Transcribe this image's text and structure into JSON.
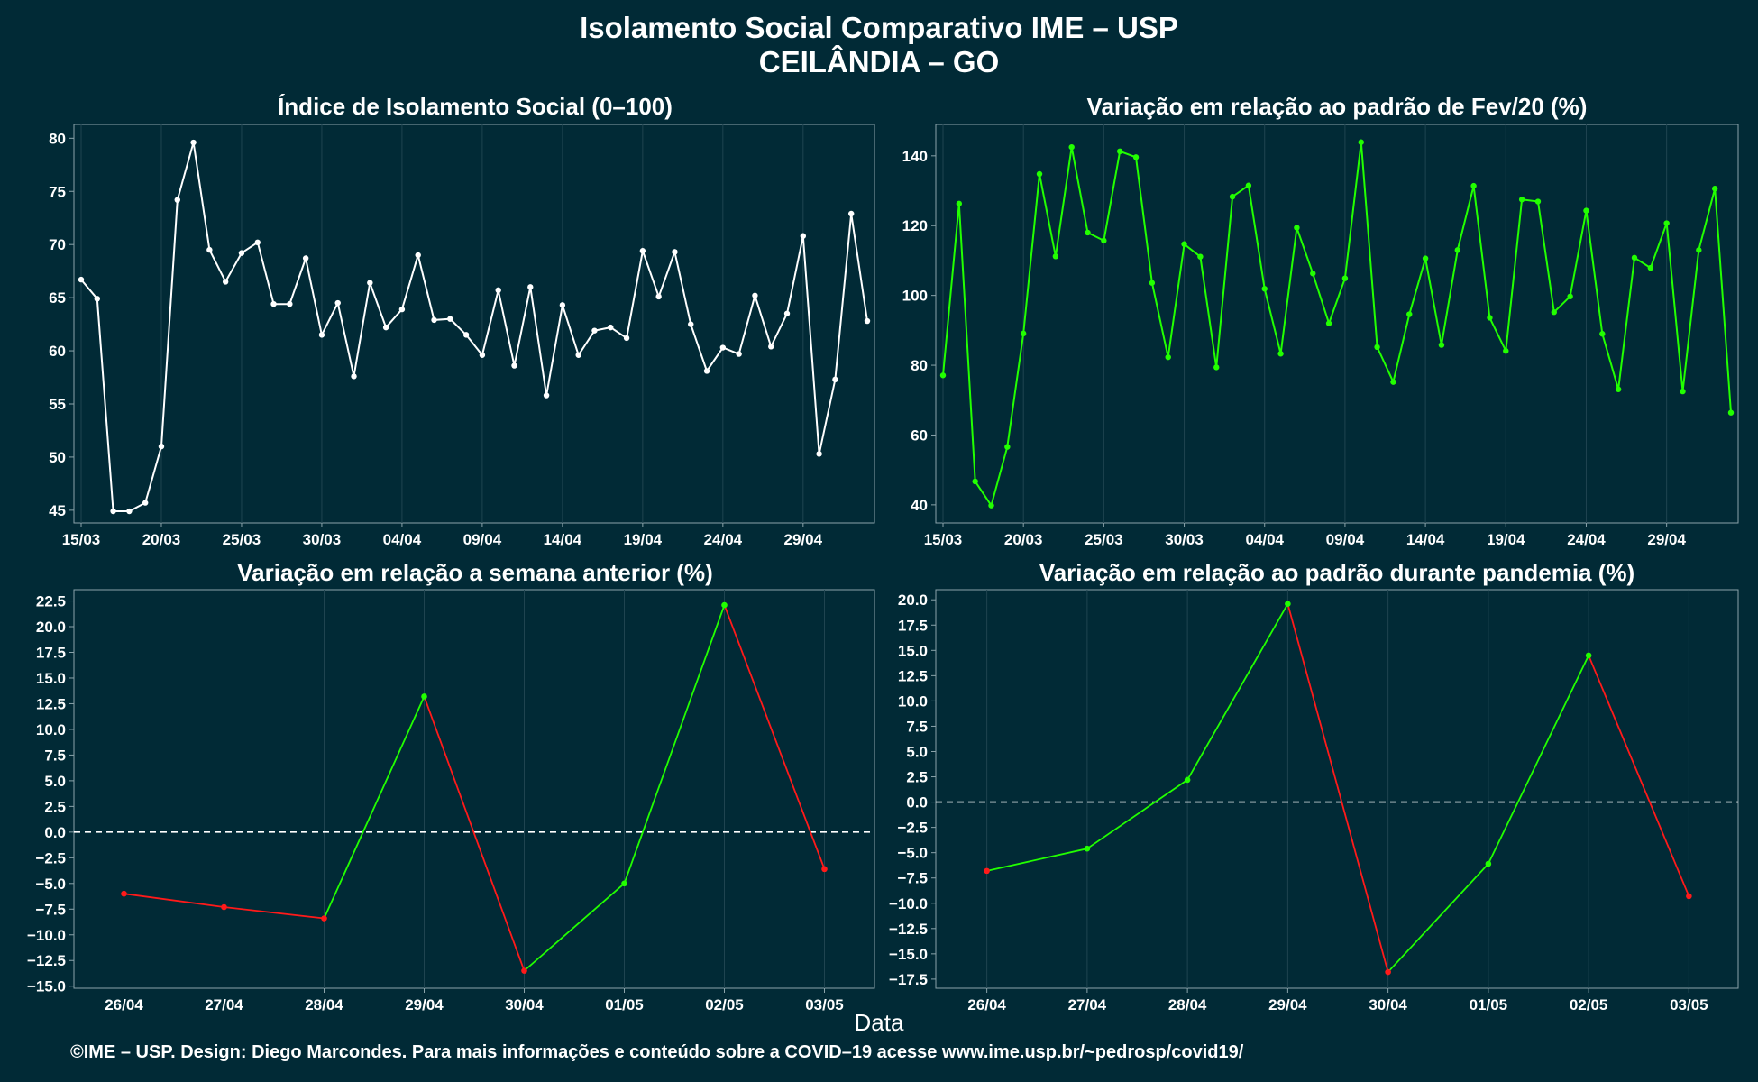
{
  "header": {
    "title_line1": "Isolamento Social Comparativo IME – USP",
    "title_line2": "CEILÂNDIA – GO"
  },
  "footer": {
    "xlabel": "Data",
    "caption": "©IME – USP. Design: Diego Marcondes. Para mais informações e conteúdo sobre a COVID–19 acesse www.ime.usp.br/~pedrosp/covid19/"
  },
  "colors": {
    "background": "#012a36",
    "grid": "#1f4450",
    "axis": "#8aa3aa",
    "white_series": "#ffffff",
    "green_series": "#22ff00",
    "red_series": "#ff1a1a",
    "zero_line": "#ffffff"
  },
  "chart_data": [
    {
      "type": "line",
      "title": "Índice de Isolamento Social (0–100)",
      "xlabel": "",
      "ylabel": "",
      "x": [
        "15/03",
        "16/03",
        "17/03",
        "18/03",
        "19/03",
        "20/03",
        "21/03",
        "22/03",
        "23/03",
        "24/03",
        "25/03",
        "26/03",
        "27/03",
        "28/03",
        "29/03",
        "30/03",
        "31/03",
        "01/04",
        "02/04",
        "03/04",
        "04/04",
        "05/04",
        "06/04",
        "07/04",
        "08/04",
        "09/04",
        "10/04",
        "11/04",
        "12/04",
        "13/04",
        "14/04",
        "15/04",
        "16/04",
        "17/04",
        "18/04",
        "19/04",
        "20/04",
        "21/04",
        "22/04",
        "23/04",
        "24/04",
        "25/04",
        "26/04",
        "27/04",
        "28/04",
        "29/04",
        "30/04",
        "01/05",
        "02/05",
        "03/05"
      ],
      "x_ticks": [
        "15/03",
        "20/03",
        "25/03",
        "30/03",
        "04/04",
        "09/04",
        "14/04",
        "19/04",
        "24/04",
        "29/04"
      ],
      "ylim": [
        43.8,
        81.3
      ],
      "y_ticks": [
        45,
        50,
        55,
        60,
        65,
        70,
        75,
        80
      ],
      "grid": true,
      "series": [
        {
          "values": [
            66.7,
            64.9,
            44.9,
            44.9,
            45.7,
            51.0,
            74.2,
            79.6,
            69.5,
            66.5,
            69.2,
            70.2,
            64.4,
            64.4,
            68.7,
            61.5,
            64.5,
            57.6,
            66.4,
            62.2,
            63.9,
            69.0,
            62.9,
            63.0,
            61.5,
            59.6,
            65.7,
            58.6,
            66.0,
            55.8,
            64.3,
            59.6,
            61.9,
            62.2,
            61.2,
            69.4,
            65.1,
            69.3,
            62.5,
            58.1,
            60.3,
            59.7,
            65.2,
            60.4,
            63.5,
            70.8,
            50.3,
            57.3,
            72.9,
            62.8
          ],
          "color": "#ffffff"
        }
      ]
    },
    {
      "type": "line",
      "title": "Variação em relação ao padrão de Fev/20 (%)",
      "xlabel": "",
      "ylabel": "",
      "x": [
        "15/03",
        "16/03",
        "17/03",
        "18/03",
        "19/03",
        "20/03",
        "21/03",
        "22/03",
        "23/03",
        "24/03",
        "25/03",
        "26/03",
        "27/03",
        "28/03",
        "29/03",
        "30/03",
        "31/03",
        "01/04",
        "02/04",
        "03/04",
        "04/04",
        "05/04",
        "06/04",
        "07/04",
        "08/04",
        "09/04",
        "10/04",
        "11/04",
        "12/04",
        "13/04",
        "14/04",
        "15/04",
        "16/04",
        "17/04",
        "18/04",
        "19/04",
        "20/04",
        "21/04",
        "22/04",
        "23/04",
        "24/04",
        "25/04",
        "26/04",
        "27/04",
        "28/04",
        "29/04",
        "30/04",
        "01/05",
        "02/05",
        "03/05"
      ],
      "x_ticks": [
        "15/03",
        "20/03",
        "25/03",
        "30/03",
        "04/04",
        "09/04",
        "14/04",
        "19/04",
        "24/04",
        "29/04"
      ],
      "ylim": [
        34.8,
        149.0
      ],
      "y_ticks": [
        40,
        60,
        80,
        100,
        120,
        140
      ],
      "grid": true,
      "series": [
        {
          "values": [
            77.1,
            126.3,
            46.7,
            39.8,
            56.6,
            89.1,
            134.8,
            111.2,
            142.5,
            118.0,
            115.7,
            141.3,
            139.6,
            103.6,
            82.3,
            114.7,
            111.1,
            79.4,
            128.3,
            131.5,
            101.9,
            83.3,
            119.4,
            106.3,
            92.0,
            104.9,
            143.9,
            85.2,
            75.2,
            94.6,
            110.6,
            85.8,
            113.0,
            131.4,
            93.6,
            84.1,
            127.5,
            126.9,
            95.2,
            99.7,
            124.3,
            89.0,
            73.1,
            110.8,
            107.9,
            120.7,
            72.5,
            113.0,
            130.6,
            66.4
          ],
          "color": "#22ff00"
        }
      ]
    },
    {
      "type": "line",
      "title": "Variação em relação a semana anterior (%)",
      "xlabel": "",
      "ylabel": "",
      "x": [
        "26/04",
        "27/04",
        "28/04",
        "29/04",
        "30/04",
        "01/05",
        "02/05",
        "03/05"
      ],
      "ylim": [
        -15.2,
        23.6
      ],
      "y_ticks": [
        -15.0,
        -12.5,
        -10.0,
        -7.5,
        -5.0,
        -2.5,
        0.0,
        2.5,
        5.0,
        7.5,
        10.0,
        12.5,
        15.0,
        17.5,
        20.0,
        22.5
      ],
      "y_ticks_label": [
        "−15.0",
        "−12.5",
        "−10.0",
        "−7.5",
        "−5.0",
        "−2.5",
        "0.0",
        "2.5",
        "5.0",
        "7.5",
        "10.0",
        "12.5",
        "15.0",
        "17.5",
        "20.0",
        "22.5"
      ],
      "reference_line": 0,
      "grid": true,
      "series": [
        {
          "values": [
            -6.0,
            -7.3,
            -8.4,
            13.2,
            -13.5,
            -5.0,
            22.1,
            -3.6
          ],
          "color_rule": "segment green when rising, red when falling"
        }
      ]
    },
    {
      "type": "line",
      "title": "Variação em relação ao padrão durante pandemia (%)",
      "xlabel": "",
      "ylabel": "",
      "x": [
        "26/04",
        "27/04",
        "28/04",
        "29/04",
        "30/04",
        "01/05",
        "02/05",
        "03/05"
      ],
      "ylim": [
        -18.4,
        21.0
      ],
      "y_ticks": [
        -17.5,
        -15.0,
        -12.5,
        -10.0,
        -7.5,
        -5.0,
        -2.5,
        0.0,
        2.5,
        5.0,
        7.5,
        10.0,
        12.5,
        15.0,
        17.5,
        20.0
      ],
      "y_ticks_label": [
        "−17.5",
        "−15.0",
        "−12.5",
        "−10.0",
        "−7.5",
        "−5.0",
        "−2.5",
        "0.0",
        "2.5",
        "5.0",
        "7.5",
        "10.0",
        "12.5",
        "15.0",
        "17.5",
        "20.0"
      ],
      "reference_line": 0,
      "grid": true,
      "series": [
        {
          "values": [
            -6.8,
            -4.6,
            2.2,
            19.6,
            -16.8,
            -6.1,
            14.5,
            -9.3
          ],
          "color_rule": "segment green when rising, red when falling"
        }
      ]
    }
  ]
}
